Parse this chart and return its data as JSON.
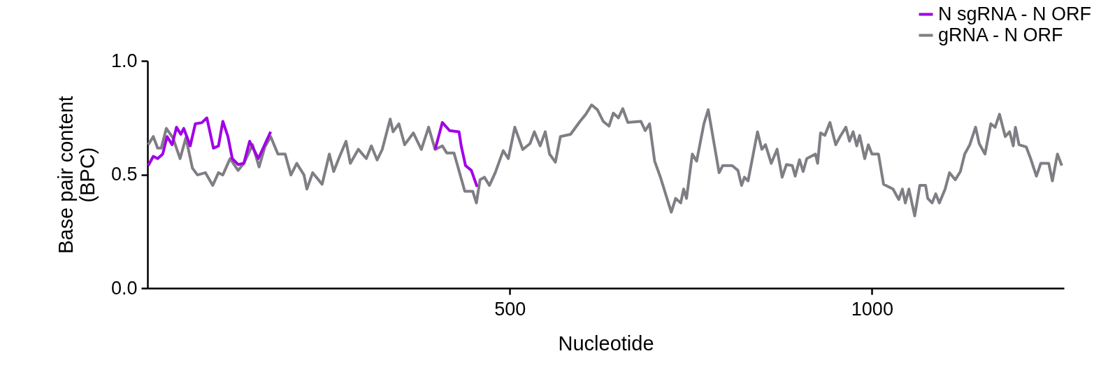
{
  "chart_data": {
    "type": "line",
    "xlabel": "Nucleotide",
    "ylabel": "Base pair content\n(BPC)",
    "xlim": [
      0,
      1265
    ],
    "xticks": [
      500,
      1000
    ],
    "ylim": [
      0,
      1
    ],
    "yticks": [
      {
        "value": 0,
        "label": "0.0"
      },
      0.5,
      {
        "value": 1,
        "label": "1.0"
      }
    ],
    "grid": false,
    "legend": "top right",
    "line_style": "solid",
    "marker": "none",
    "series": [
      {
        "name": "N sgRNA - N ORF",
        "color": "#a100e6",
        "x": [
          1,
          8,
          14,
          21,
          27,
          34,
          40,
          46,
          50,
          59,
          66,
          75,
          82,
          91,
          98,
          104,
          111,
          117,
          125,
          133,
          141,
          153,
          161,
          170,
          300,
          397,
          407,
          417,
          430,
          433,
          439,
          447,
          455
        ],
        "values": [
          0.539,
          0.58,
          0.57,
          0.59,
          0.667,
          0.631,
          0.708,
          0.677,
          0.703,
          0.626,
          0.723,
          0.728,
          0.749,
          0.616,
          0.626,
          0.734,
          0.667,
          0.57,
          0.544,
          0.549,
          0.646,
          0.57,
          0.626,
          0.688,
          null,
          0.61,
          0.729,
          0.693,
          0.688,
          0.626,
          0.539,
          0.518,
          0.446
        ]
      },
      {
        "name": "gRNA - N ORF",
        "color": "#807e84",
        "x": [
          1,
          8,
          14,
          19,
          26,
          35,
          45,
          53,
          62,
          69,
          80,
          90,
          98,
          104,
          114,
          125,
          133,
          145,
          154,
          162,
          170,
          180,
          190,
          198,
          206,
          216,
          220,
          228,
          241,
          251,
          257,
          264,
          274,
          280,
          291,
          302,
          309,
          317,
          324,
          335,
          339,
          347,
          355,
          367,
          378,
          388,
          397,
          407,
          413,
          423,
          428,
          438,
          449,
          454,
          459,
          465,
          472,
          480,
          491,
          498,
          507,
          518,
          528,
          534,
          542,
          549,
          555,
          563,
          570,
          584,
          597,
          605,
          613,
          621,
          629,
          637,
          643,
          650,
          656,
          663,
          681,
          687,
          693,
          700,
          708,
          723,
          729,
          736,
          740,
          744,
          752,
          758,
          768,
          774,
          789,
          794,
          807,
          815,
          820,
          824,
          829,
          842,
          848,
          853,
          861,
          869,
          876,
          882,
          890,
          894,
          900,
          905,
          910,
          922,
          925,
          929,
          935,
          942,
          950,
          956,
          964,
          969,
          974,
          979,
          983,
          990,
          995,
          1000,
          1009,
          1016,
          1029,
          1037,
          1042,
          1046,
          1051,
          1059,
          1066,
          1074,
          1077,
          1083,
          1088,
          1093,
          1101,
          1107,
          1115,
          1122,
          1128,
          1135,
          1143,
          1148,
          1156,
          1164,
          1170,
          1176,
          1184,
          1190,
          1195,
          1198,
          1203,
          1213,
          1219,
          1227,
          1233,
          1244,
          1249,
          1256,
          1262
        ],
        "values": [
          0.631,
          0.667,
          0.616,
          0.616,
          0.703,
          0.662,
          0.57,
          0.662,
          0.528,
          0.498,
          0.508,
          0.452,
          0.508,
          0.498,
          0.57,
          0.518,
          0.549,
          0.631,
          0.533,
          0.621,
          0.667,
          0.59,
          0.59,
          0.498,
          0.549,
          0.498,
          0.436,
          0.508,
          0.457,
          0.59,
          0.513,
          0.57,
          0.646,
          0.549,
          0.611,
          0.57,
          0.626,
          0.564,
          0.61,
          0.744,
          0.688,
          0.723,
          0.631,
          0.683,
          0.61,
          0.708,
          0.61,
          0.626,
          0.595,
          0.595,
          0.539,
          0.426,
          0.426,
          0.375,
          0.477,
          0.488,
          0.452,
          0.508,
          0.605,
          0.57,
          0.708,
          0.61,
          0.636,
          0.688,
          0.626,
          0.688,
          0.59,
          0.554,
          0.667,
          0.677,
          0.734,
          0.765,
          0.806,
          0.785,
          0.734,
          0.713,
          0.77,
          0.749,
          0.79,
          0.729,
          0.734,
          0.693,
          0.723,
          0.559,
          0.488,
          0.334,
          0.395,
          0.375,
          0.436,
          0.395,
          0.59,
          0.559,
          0.723,
          0.785,
          0.508,
          0.539,
          0.539,
          0.518,
          0.452,
          0.488,
          0.472,
          0.688,
          0.611,
          0.631,
          0.549,
          0.611,
          0.488,
          0.544,
          0.539,
          0.493,
          0.565,
          0.513,
          0.57,
          0.59,
          0.549,
          0.683,
          0.672,
          0.729,
          0.631,
          0.667,
          0.708,
          0.647,
          0.688,
          0.626,
          0.672,
          0.57,
          0.631,
          0.59,
          0.59,
          0.457,
          0.436,
          0.39,
          0.436,
          0.375,
          0.436,
          0.318,
          0.452,
          0.452,
          0.395,
          0.375,
          0.415,
          0.375,
          0.436,
          0.508,
          0.477,
          0.513,
          0.59,
          0.631,
          0.708,
          0.636,
          0.59,
          0.723,
          0.708,
          0.765,
          0.667,
          0.688,
          0.626,
          0.708,
          0.631,
          0.621,
          0.57,
          0.493,
          0.549,
          0.549,
          0.472,
          0.59,
          0.539
        ]
      }
    ]
  }
}
